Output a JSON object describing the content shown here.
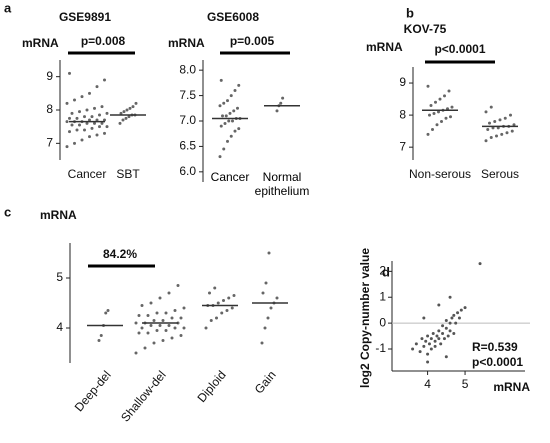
{
  "panel_labels": [
    "a",
    "b",
    "c",
    "d"
  ],
  "chart_data": [
    {
      "type": "dot",
      "title": "GSE9891",
      "ylabel": "mRNA",
      "annotation": "p=0.008",
      "categories": [
        "Cancer",
        "SBT"
      ],
      "values": [
        7.65,
        7.85
      ],
      "points": [
        [
          6.9,
          7.0,
          7.1,
          7.2,
          7.25,
          7.3,
          7.35,
          7.4,
          7.4,
          7.45,
          7.5,
          7.5,
          7.55,
          7.55,
          7.6,
          7.6,
          7.6,
          7.65,
          7.65,
          7.65,
          7.7,
          7.7,
          7.7,
          7.75,
          7.75,
          7.8,
          7.8,
          7.85,
          7.9,
          7.9,
          7.95,
          8.0,
          8.05,
          8.1,
          8.2,
          8.3,
          8.4,
          8.5,
          8.7,
          8.9,
          9.1
        ],
        [
          7.6,
          7.7,
          7.75,
          7.8,
          7.85,
          7.85,
          7.9,
          7.95,
          8.0,
          8.05,
          8.1,
          8.2
        ]
      ],
      "ylim": [
        6.5,
        9.5
      ],
      "yticks": [
        7,
        8,
        9
      ]
    },
    {
      "type": "dot",
      "title": "GSE6008",
      "ylabel": "mRNA",
      "annotation": "p=0.005",
      "categories": [
        "Cancer",
        "Normal epithelium"
      ],
      "values": [
        7.05,
        7.3
      ],
      "points": [
        [
          6.3,
          6.45,
          6.6,
          6.7,
          6.8,
          6.85,
          6.9,
          6.95,
          7.0,
          7.0,
          7.05,
          7.05,
          7.1,
          7.1,
          7.15,
          7.2,
          7.25,
          7.3,
          7.35,
          7.4,
          7.5,
          7.6,
          7.7,
          7.8
        ],
        [
          7.2,
          7.3,
          7.35,
          7.45
        ]
      ],
      "ylim": [
        5.8,
        8.2
      ],
      "yticks": [
        {
          "value": 6.0,
          "label": "6.0"
        },
        6.5,
        {
          "value": 7.0,
          "label": "7.0"
        },
        7.5,
        {
          "value": 8.0,
          "label": "8.0"
        }
      ]
    },
    {
      "type": "dot",
      "title": "KOV-75",
      "ylabel": "mRNA",
      "annotation": "p<0.0001",
      "categories": [
        "Non-serous",
        "Serous"
      ],
      "values": [
        8.15,
        7.65
      ],
      "points": [
        [
          7.4,
          7.55,
          7.7,
          7.8,
          7.9,
          7.95,
          8.0,
          8.05,
          8.1,
          8.15,
          8.2,
          8.25,
          8.3,
          8.4,
          8.5,
          8.6,
          8.75,
          8.9
        ],
        [
          7.2,
          7.3,
          7.35,
          7.4,
          7.45,
          7.5,
          7.55,
          7.6,
          7.6,
          7.65,
          7.65,
          7.7,
          7.75,
          7.8,
          7.85,
          7.9,
          8.0,
          8.1,
          8.25
        ]
      ],
      "ylim": [
        6.6,
        9.5
      ],
      "yticks": [
        7,
        8,
        9
      ]
    },
    {
      "type": "dot",
      "ylabel": "mRNA",
      "annotation": "84.2%",
      "categories": [
        "Deep-del",
        "Shallow-del",
        "Diploid",
        "Gain"
      ],
      "values": [
        4.05,
        4.1,
        4.45,
        4.5
      ],
      "points": [
        [
          3.75,
          3.85,
          4.05,
          4.3,
          4.35
        ],
        [
          3.5,
          3.6,
          3.7,
          3.75,
          3.8,
          3.85,
          3.9,
          3.9,
          3.95,
          3.95,
          4.0,
          4.0,
          4.0,
          4.05,
          4.05,
          4.05,
          4.1,
          4.1,
          4.1,
          4.15,
          4.15,
          4.2,
          4.2,
          4.25,
          4.25,
          4.3,
          4.3,
          4.35,
          4.4,
          4.45,
          4.5,
          4.6,
          4.7,
          4.85
        ],
        [
          4.0,
          4.15,
          4.2,
          4.3,
          4.35,
          4.4,
          4.45,
          4.45,
          4.5,
          4.55,
          4.6,
          4.65,
          4.7,
          4.8
        ],
        [
          3.7,
          4.0,
          4.2,
          4.4,
          4.5,
          4.6,
          4.7,
          4.9,
          5.5
        ]
      ],
      "ylim": [
        3.3,
        5.7
      ],
      "yticks": [
        4,
        5
      ]
    },
    {
      "type": "scatter",
      "ylabel": "log2 Copy-number value",
      "xlabel": "mRNA",
      "annotations": [
        "R=0.539",
        "p<0.0001"
      ],
      "x": [
        3.6,
        3.7,
        3.8,
        3.85,
        3.9,
        3.95,
        4.0,
        4.0,
        4.05,
        4.1,
        4.1,
        4.15,
        4.2,
        4.2,
        4.25,
        4.3,
        4.3,
        4.35,
        4.4,
        4.4,
        4.45,
        4.5,
        4.5,
        4.55,
        4.6,
        4.6,
        4.65,
        4.7,
        4.7,
        4.75,
        4.8,
        4.85,
        4.9,
        5.0,
        4.3,
        4.5,
        4.0,
        3.9,
        4.6,
        5.4
      ],
      "y": [
        -1.0,
        -0.8,
        -1.1,
        -0.6,
        -0.9,
        -0.7,
        -1.2,
        -0.5,
        -0.8,
        -0.6,
        -1.0,
        -0.4,
        -0.7,
        -0.9,
        -0.5,
        -0.6,
        -0.3,
        -0.8,
        -0.4,
        -0.1,
        -0.6,
        -0.2,
        0.1,
        -0.5,
        0.0,
        -0.3,
        0.2,
        -0.4,
        0.3,
        0.0,
        0.4,
        0.2,
        0.5,
        0.6,
        0.7,
        -1.3,
        -1.5,
        0.2,
        1.0,
        2.3
      ],
      "xlim": [
        3.05,
        6.6
      ],
      "ylim": [
        -1.85,
        2.4
      ],
      "xticks": [
        4,
        5
      ],
      "yticks": [
        -1,
        0,
        1,
        2
      ],
      "refline": 0
    }
  ]
}
